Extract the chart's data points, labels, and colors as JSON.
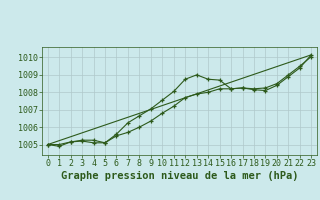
{
  "background_color": "#cce9eb",
  "grid_color": "#b0c8ca",
  "line_color": "#2d5a1b",
  "marker_color": "#2d5a1b",
  "xlabel": "Graphe pression niveau de la mer (hPa)",
  "xlim": [
    -0.5,
    23.5
  ],
  "ylim": [
    1004.4,
    1010.6
  ],
  "yticks": [
    1005,
    1006,
    1007,
    1008,
    1009,
    1010
  ],
  "xticks": [
    0,
    1,
    2,
    3,
    4,
    5,
    6,
    7,
    8,
    9,
    10,
    11,
    12,
    13,
    14,
    15,
    16,
    17,
    18,
    19,
    20,
    21,
    22,
    23
  ],
  "series1_x": [
    0,
    1,
    2,
    3,
    4,
    5,
    6,
    7,
    8,
    9,
    10,
    11,
    12,
    13,
    14,
    15,
    16,
    17,
    18,
    19,
    20,
    21,
    22,
    23
  ],
  "series1_y": [
    1005.0,
    1005.0,
    1005.15,
    1005.25,
    1005.25,
    1005.1,
    1005.6,
    1006.25,
    1006.65,
    1007.05,
    1007.55,
    1008.05,
    1008.75,
    1009.0,
    1008.75,
    1008.7,
    1008.2,
    1008.25,
    1008.15,
    1008.1,
    1008.4,
    1008.9,
    1009.4,
    1010.15
  ],
  "series2_x": [
    0,
    1,
    2,
    3,
    4,
    5,
    6,
    7,
    8,
    9,
    10,
    11,
    12,
    13,
    14,
    15,
    16,
    17,
    18,
    19,
    20,
    21,
    22,
    23
  ],
  "series2_y": [
    1005.0,
    1004.9,
    1005.15,
    1005.2,
    1005.1,
    1005.1,
    1005.5,
    1005.7,
    1006.0,
    1006.35,
    1006.8,
    1007.2,
    1007.7,
    1007.9,
    1008.0,
    1008.2,
    1008.2,
    1008.25,
    1008.2,
    1008.25,
    1008.5,
    1009.0,
    1009.5,
    1010.05
  ],
  "series3_x": [
    0,
    23
  ],
  "series3_y": [
    1005.0,
    1010.15
  ],
  "title_fontsize": 7,
  "tick_fontsize": 6,
  "xlabel_fontsize": 7.5
}
